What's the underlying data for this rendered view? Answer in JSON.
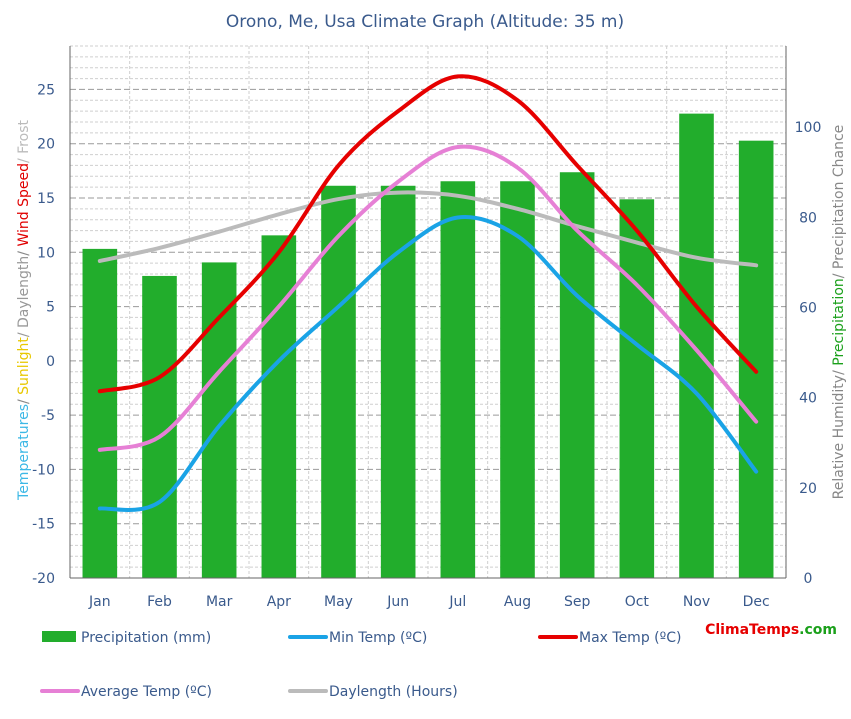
{
  "chart_data": {
    "type": "bar",
    "title": "Orono, Me, Usa Climate Graph (Altitude: 35 m)",
    "categories": [
      "Jan",
      "Feb",
      "Mar",
      "Apr",
      "May",
      "Jun",
      "Jul",
      "Aug",
      "Sep",
      "Oct",
      "Nov",
      "Dec"
    ],
    "y_left": {
      "label_parts": [
        {
          "text": "Temperatures",
          "color": "#3cb8e6"
        },
        {
          "text": "/ ",
          "color": "#888888"
        },
        {
          "text": "Sunlight",
          "color": "#e8c800"
        },
        {
          "text": "/ Daylength",
          "color": "#999999"
        },
        {
          "text": "/ ",
          "color": "#888888"
        },
        {
          "text": "Wind Speed",
          "color": "#e00000"
        },
        {
          "text": "/ Frost",
          "color": "#bbbbbb"
        }
      ],
      "ylim": [
        -20,
        29
      ],
      "ticks": [
        -20,
        -15,
        -10,
        -5,
        0,
        5,
        10,
        15,
        20,
        25
      ]
    },
    "y_right": {
      "label_parts": [
        {
          "text": "Relative Humidity",
          "color": "#888888"
        },
        {
          "text": "/ ",
          "color": "#888888"
        },
        {
          "text": "Precipitation",
          "color": "#1aa01a"
        },
        {
          "text": "/ Precipitation Chance",
          "color": "#888888"
        }
      ],
      "ylim": [
        0,
        118
      ],
      "ticks": [
        0,
        20,
        40,
        60,
        80,
        100
      ]
    },
    "series": [
      {
        "name": "Precipitation (mm)",
        "kind": "bar",
        "axis": "right",
        "color": "#22ad2c",
        "values": [
          73,
          67,
          70,
          76,
          87,
          87,
          88,
          88,
          90,
          84,
          103,
          97
        ]
      },
      {
        "name": "Min Temp (ºC)",
        "kind": "line",
        "axis": "left",
        "color": "#1aa3e6",
        "values": [
          -13.6,
          -13,
          -6,
          0,
          5,
          10,
          13.2,
          11.5,
          6,
          1.5,
          -3,
          -10.2
        ]
      },
      {
        "name": "Max Temp (ºC)",
        "kind": "line",
        "axis": "left",
        "color": "#e60000",
        "values": [
          -2.8,
          -1.5,
          4,
          10,
          18,
          23,
          26.2,
          24,
          18,
          12,
          5,
          -1
        ]
      },
      {
        "name": "Average Temp (ºC)",
        "kind": "line",
        "axis": "left",
        "color": "#e680d5",
        "values": [
          -8.2,
          -7,
          -1,
          5,
          11.5,
          16.5,
          19.7,
          17.8,
          12,
          7,
          1,
          -5.6
        ]
      },
      {
        "name": "Daylength (Hours)",
        "kind": "line",
        "axis": "left",
        "color": "#bbbbbb",
        "values": [
          9.2,
          10.4,
          11.9,
          13.5,
          14.9,
          15.5,
          15.2,
          14,
          12.4,
          10.9,
          9.5,
          8.8
        ]
      }
    ],
    "grid": true,
    "legend_placement": "bottom"
  },
  "watermark": {
    "part1": "Clima",
    "part2": "Temps",
    "part3": ".com",
    "color1": "#e60000",
    "color2": "#e60000",
    "color3": "#1aa01a"
  }
}
